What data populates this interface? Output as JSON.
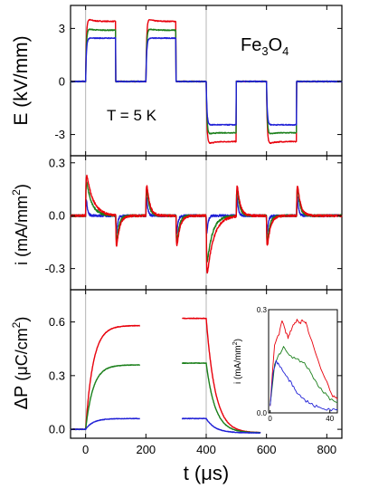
{
  "chart_data": [
    {
      "type": "line",
      "panel": "top",
      "ylabel_text": "E (kV/mm)",
      "yticks": [
        3,
        0,
        -3
      ],
      "ytick_labels": [
        "3",
        "0",
        "-3"
      ],
      "ylim": [
        -4.2,
        4.3
      ],
      "xlim": [
        -50,
        850
      ],
      "material_label": {
        "base": "Fe",
        "sub1": "3",
        "mid": "O",
        "sub2": "4"
      },
      "annotation": "T = 5 K",
      "pulse_times": [
        0,
        100,
        200,
        300,
        400,
        500,
        600,
        700
      ],
      "series": [
        {
          "name": "red",
          "color": "#e8000b",
          "plateau": 3.4,
          "overshoot": 0.25
        },
        {
          "name": "green",
          "color": "#1a7f1a",
          "plateau": 2.9,
          "overshoot": 0.15
        },
        {
          "name": "blue",
          "color": "#1f1fd6",
          "plateau": 2.45,
          "overshoot": 0.0
        }
      ]
    },
    {
      "type": "line",
      "panel": "middle",
      "ylabel_text": "i (mA/mm",
      "ylabel_sup": "2",
      "ylabel_tail": ")",
      "yticks": [
        0.3,
        0.0,
        -0.3
      ],
      "ytick_labels": [
        "0.3",
        "0.0",
        "-0.3"
      ],
      "ylim": [
        -0.42,
        0.34
      ],
      "xlim": [
        -50,
        850
      ],
      "spikes": [
        {
          "t": 0,
          "red": 0.28,
          "green": 0.24,
          "blue": 0.19
        },
        {
          "t": 100,
          "red": -0.25,
          "green": -0.22,
          "blue": -0.2
        },
        {
          "t": 200,
          "red": 0.25,
          "green": 0.24,
          "blue": 0.22
        },
        {
          "t": 300,
          "red": -0.25,
          "green": -0.23,
          "blue": -0.21
        },
        {
          "t": 400,
          "red": -0.4,
          "green": -0.33,
          "blue": -0.2
        },
        {
          "t": 500,
          "red": 0.25,
          "green": 0.24,
          "blue": 0.22
        },
        {
          "t": 600,
          "red": -0.25,
          "green": -0.23,
          "blue": -0.21
        },
        {
          "t": 700,
          "red": 0.25,
          "green": 0.24,
          "blue": 0.22
        }
      ]
    },
    {
      "type": "line",
      "panel": "bottom",
      "ylabel_delta": "ΔP",
      "ylabel_open": " (μC/cm",
      "ylabel_sup": "2",
      "ylabel_tail": ")",
      "yticks": [
        0.6,
        0.3,
        0.0
      ],
      "ytick_labels": [
        "0.6",
        "0.3",
        "0.0"
      ],
      "ylim": [
        -0.05,
        0.78
      ],
      "xlim": [
        -50,
        850
      ],
      "xticks": [
        0,
        200,
        400,
        600,
        800
      ],
      "xtick_labels": [
        "0",
        "200",
        "400",
        "600",
        "800"
      ],
      "xlabel_main": "t",
      "xlabel_unit": "(μs)",
      "series": [
        {
          "name": "red",
          "color": "#e8000b",
          "saturation": 0.58,
          "start_down": 0.62
        },
        {
          "name": "green",
          "color": "#1a7f1a",
          "saturation": 0.36,
          "start_down": 0.37
        },
        {
          "name": "blue",
          "color": "#1f1fd6",
          "saturation": 0.06,
          "start_down": 0.06
        }
      ],
      "segments": [
        [
          0,
          180
        ],
        [
          320,
          580
        ]
      ]
    },
    {
      "type": "line",
      "panel": "inset",
      "ylabel_text": "i (mA/mm",
      "ylabel_sup": "2",
      "ylabel_tail": ")",
      "yticks": [
        0.3,
        0.0
      ],
      "ytick_labels": [
        "0.3",
        "0.0"
      ],
      "xticks": [
        0,
        40
      ],
      "xtick_labels": [
        "0",
        "40"
      ],
      "ylim": [
        0,
        0.3
      ],
      "xlim": [
        -1,
        45
      ],
      "series": [
        {
          "name": "red",
          "color": "#e8000b",
          "x": [
            0,
            3,
            6,
            8,
            10,
            12,
            14,
            16,
            18,
            20,
            22,
            24,
            26,
            30,
            34,
            38,
            42,
            45
          ],
          "y": [
            0.02,
            0.2,
            0.23,
            0.27,
            0.24,
            0.22,
            0.24,
            0.26,
            0.27,
            0.26,
            0.27,
            0.26,
            0.23,
            0.18,
            0.13,
            0.09,
            0.05,
            0.04
          ]
        },
        {
          "name": "green",
          "color": "#1a7f1a",
          "x": [
            0,
            3,
            6,
            9,
            12,
            16,
            20,
            24,
            28,
            32,
            36,
            40,
            45
          ],
          "y": [
            0.02,
            0.14,
            0.17,
            0.19,
            0.17,
            0.16,
            0.15,
            0.14,
            0.11,
            0.08,
            0.06,
            0.04,
            0.03
          ]
        },
        {
          "name": "blue",
          "color": "#1f1fd6",
          "x": [
            0,
            2,
            4,
            6,
            9,
            12,
            15,
            18,
            22,
            26,
            30,
            34,
            38,
            42,
            45
          ],
          "y": [
            0.02,
            0.12,
            0.15,
            0.14,
            0.12,
            0.1,
            0.08,
            0.06,
            0.04,
            0.03,
            0.02,
            0.015,
            0.01,
            0.01,
            0.01
          ]
        }
      ]
    }
  ]
}
